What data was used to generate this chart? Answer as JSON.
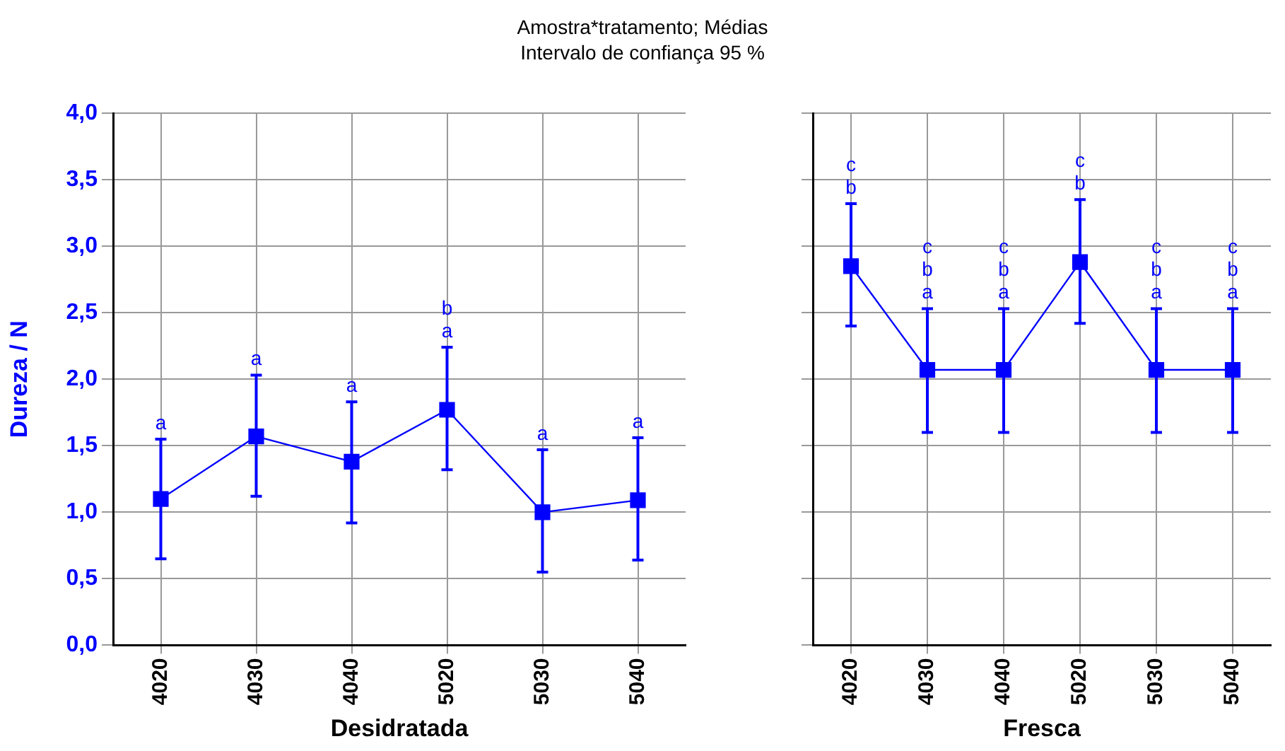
{
  "chart_data": [
    {
      "type": "line",
      "title": "Amostra*tratamento; Médias",
      "subtitle": "Intervalo de confiança 95 %",
      "xlabel": "Desidratada",
      "ylabel": "Dureza / N",
      "categories": [
        "4020",
        "4030",
        "4040",
        "5020",
        "5030",
        "5040"
      ],
      "series": [
        {
          "color": "#0000ff",
          "values": [
            1.1,
            1.57,
            1.38,
            1.77,
            1.0,
            1.09
          ],
          "errors": [
            [
              0.65,
              1.55
            ],
            [
              1.12,
              2.03
            ],
            [
              0.92,
              1.83
            ],
            [
              1.32,
              2.24
            ],
            [
              0.55,
              1.47
            ],
            [
              0.64,
              1.56
            ]
          ]
        }
      ],
      "ylim": [
        0,
        4
      ],
      "yticks": [
        {
          "value": 0,
          "label": "0,0"
        },
        {
          "value": 0.5,
          "label": "0,5"
        },
        {
          "value": 1,
          "label": "1,0"
        },
        {
          "value": 1.5,
          "label": "1,5"
        },
        {
          "value": 2,
          "label": "2,0"
        },
        {
          "value": 2.5,
          "label": "2,5"
        },
        {
          "value": 3,
          "label": "3,0"
        },
        {
          "value": 3.5,
          "label": "3,5"
        },
        {
          "value": 4,
          "label": "4,0"
        }
      ],
      "grid": true,
      "legend": false,
      "marker": "square",
      "line_style": "solid",
      "annotations": [
        {
          "text": "a",
          "x": "4020",
          "y": 1.55
        },
        {
          "text": "a",
          "x": "4030",
          "y": 2.03
        },
        {
          "text": "a",
          "x": "4040",
          "y": 1.83
        },
        {
          "text": "b\na",
          "x": "5020",
          "y": 2.24
        },
        {
          "text": "a",
          "x": "5030",
          "y": 1.47
        },
        {
          "text": "a",
          "x": "5040",
          "y": 1.56
        }
      ]
    },
    {
      "type": "line",
      "xlabel": "Fresca",
      "categories": [
        "4020",
        "4030",
        "4040",
        "5020",
        "5030",
        "5040"
      ],
      "series": [
        {
          "color": "#0000ff",
          "values": [
            2.85,
            2.07,
            2.07,
            2.88,
            2.07,
            2.07
          ],
          "errors": [
            [
              2.4,
              3.32
            ],
            [
              1.6,
              2.53
            ],
            [
              1.6,
              2.53
            ],
            [
              2.42,
              3.35
            ],
            [
              1.6,
              2.53
            ],
            [
              1.6,
              2.53
            ]
          ]
        }
      ],
      "ylim": [
        0,
        4
      ],
      "yticks": [
        {
          "value": 0,
          "label": null
        },
        {
          "value": 0.5,
          "label": null
        },
        {
          "value": 1,
          "label": null
        },
        {
          "value": 1.5,
          "label": null
        },
        {
          "value": 2,
          "label": null
        },
        {
          "value": 2.5,
          "label": null
        },
        {
          "value": 3,
          "label": null
        },
        {
          "value": 3.5,
          "label": null
        },
        {
          "value": 4,
          "label": null
        }
      ],
      "tick_labels": "x",
      "grid": true,
      "legend": false,
      "marker": "square",
      "line_style": "solid",
      "annotations": [
        {
          "text": "c\nb",
          "x": "4020",
          "y": 3.32
        },
        {
          "text": "c\nb\na",
          "x": "4030",
          "y": 2.53
        },
        {
          "text": "c\nb\na",
          "x": "4040",
          "y": 2.53
        },
        {
          "text": "c\nb",
          "x": "5020",
          "y": 3.35
        },
        {
          "text": "c\nb\na",
          "x": "5030",
          "y": 2.53
        },
        {
          "text": "c\nb\na",
          "x": "5040",
          "y": 2.53
        }
      ]
    }
  ]
}
